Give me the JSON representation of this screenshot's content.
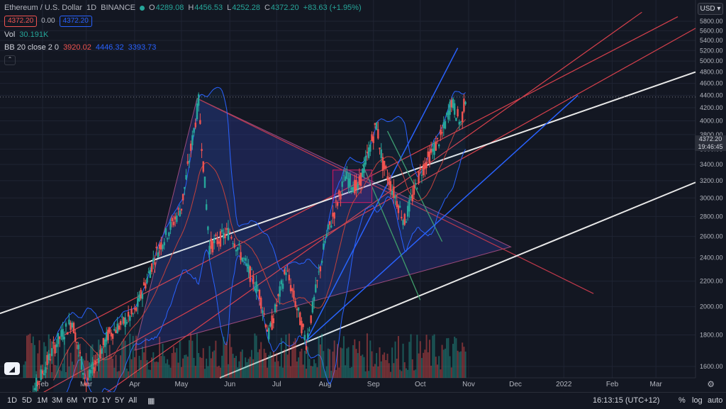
{
  "header": {
    "symbol": "Ethereum / U.S. Dollar",
    "interval": "1D",
    "exchange": "BINANCE",
    "ohlc": [
      {
        "label": "O",
        "value": "4289.08"
      },
      {
        "label": "H",
        "value": "4456.53"
      },
      {
        "label": "L",
        "value": "4252.28"
      },
      {
        "label": "C",
        "value": "4372.20"
      }
    ],
    "change": "+83.63 (+1.95%)",
    "sell_price": "4372.20",
    "spread": "0.00",
    "buy_price": "4372.20"
  },
  "indicators": {
    "vol_label": "Vol",
    "vol_value": "30.191K",
    "bb_label": "BB 20 close 2 0",
    "bb_basis": "3920.02",
    "bb_upper": "4446.32",
    "bb_lower": "3393.73"
  },
  "currency": "USD",
  "price_label": {
    "value": "4372.20",
    "countdown": "19:46:45"
  },
  "colors": {
    "up": "#26a69a",
    "down": "#ef5350",
    "blue": "#2962ff",
    "bg": "#131722"
  },
  "toolbar": {
    "timeframes": [
      "1D",
      "5D",
      "1M",
      "3M",
      "6M",
      "YTD",
      "1Y",
      "5Y",
      "All"
    ],
    "time": "16:13:15 (UTC+12)",
    "percent": "%",
    "log": "log",
    "auto": "auto"
  },
  "chart_data": {
    "type": "candlestick",
    "y_ticks": [
      "5800.00",
      "5600.00",
      "5400.00",
      "5200.00",
      "5000.00",
      "4800.00",
      "4600.00",
      "4400.00",
      "4200.00",
      "4000.00",
      "3800.00",
      "3600.00",
      "3400.00",
      "3200.00",
      "3000.00",
      "2800.00",
      "2600.00",
      "2400.00",
      "2200.00",
      "2000.00",
      "1800.00",
      "1600.00"
    ],
    "x_ticks": [
      "Feb",
      "Mar",
      "Apr",
      "May",
      "Jun",
      "Jul",
      "Aug",
      "Sep",
      "Oct",
      "Nov",
      "Dec",
      "2022",
      "Feb",
      "Mar"
    ],
    "scale": "log",
    "ylim": [
      1500,
      6000
    ],
    "price_path": [
      [
        "2021-01-20",
        1350
      ],
      [
        "2021-02-10",
        1750
      ],
      [
        "2021-02-20",
        1900
      ],
      [
        "2021-03-01",
        1500
      ],
      [
        "2021-03-15",
        1800
      ],
      [
        "2021-04-01",
        1950
      ],
      [
        "2021-04-15",
        2450
      ],
      [
        "2021-05-01",
        2900
      ],
      [
        "2021-05-12",
        4300
      ],
      [
        "2021-05-19",
        2500
      ],
      [
        "2021-06-01",
        2650
      ],
      [
        "2021-06-20",
        2100
      ],
      [
        "2021-06-26",
        1800
      ],
      [
        "2021-07-07",
        2300
      ],
      [
        "2021-07-20",
        1750
      ],
      [
        "2021-08-01",
        2550
      ],
      [
        "2021-08-14",
        3250
      ],
      [
        "2021-08-22",
        3100
      ],
      [
        "2021-09-03",
        3950
      ],
      [
        "2021-09-07",
        3400
      ],
      [
        "2021-09-21",
        2750
      ],
      [
        "2021-10-01",
        3300
      ],
      [
        "2021-10-15",
        3800
      ],
      [
        "2021-10-21",
        4300
      ],
      [
        "2021-10-27",
        3950
      ],
      [
        "2021-10-30",
        4372.2
      ]
    ],
    "bollinger": {
      "basis": 3920.02,
      "upper": 4446.32,
      "lower": 3393.73
    },
    "grid": true
  }
}
